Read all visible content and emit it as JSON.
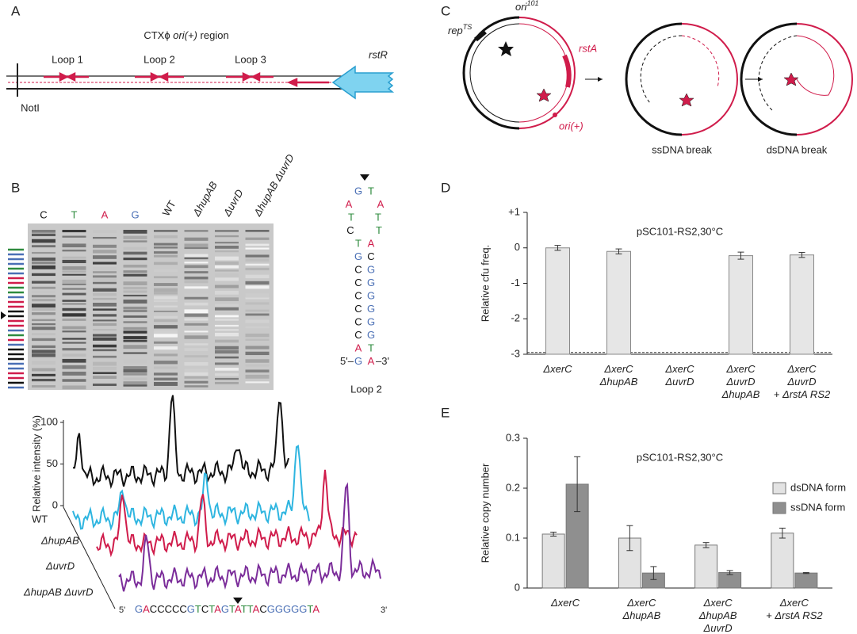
{
  "panel_a": {
    "label": "A",
    "title_parts": [
      "CTXϕ ",
      "ori(+)",
      " region"
    ],
    "loops": [
      "Loop 1",
      "Loop 2",
      "Loop 3"
    ],
    "gene": "rstR",
    "site": "NotI"
  },
  "panel_b": {
    "label": "B",
    "lanes": [
      "C",
      "T",
      "A",
      "G",
      "WT",
      "ΔhupAB",
      "ΔuvrD",
      "ΔhupAB ΔuvrD"
    ],
    "hairpin_rows": [
      [
        "G",
        "T"
      ],
      [
        "A",
        "A"
      ],
      [
        "T",
        "T"
      ],
      [
        "C",
        "T"
      ],
      [
        "T",
        "A"
      ],
      [
        "G",
        "C"
      ],
      [
        "C",
        "G"
      ],
      [
        "C",
        "G"
      ],
      [
        "C",
        "G"
      ],
      [
        "C",
        "G"
      ],
      [
        "C",
        "G"
      ],
      [
        "C",
        "G"
      ],
      [
        "A",
        "T"
      ],
      [
        "G",
        "A"
      ]
    ],
    "hairpin_ends": [
      "5'–",
      "–3'"
    ],
    "hairpin_label": "Loop 2",
    "trace_axis_label": "Relative intensity (%)",
    "trace_ticks": [
      100,
      50,
      0
    ],
    "traces": [
      "WT",
      "ΔhupAB",
      "ΔuvrD",
      "ΔhupAB ΔuvrD"
    ],
    "sequence": "GACCCCCGTCTAGTATTACGGGGGTA",
    "seq_ends": [
      "5'",
      "3'"
    ]
  },
  "panel_c": {
    "label": "C",
    "ori101": [
      "ori",
      "101"
    ],
    "rep": [
      "rep",
      "TS"
    ],
    "gene": "rstA",
    "origin": "ori(+)",
    "steps": [
      "ssDNA break",
      "dsDNA break"
    ]
  },
  "panel_labels": [
    "D",
    "E"
  ],
  "chart_data": [
    {
      "type": "bar",
      "title": "pSC101-RS2,30°C",
      "y_label": "Relative cfu freq.",
      "categories": [
        [
          "ΔxerC"
        ],
        [
          "ΔxerC",
          "ΔhupAB"
        ],
        [
          "ΔxerC",
          "ΔuvrD"
        ],
        [
          "ΔxerC",
          "ΔuvrD",
          "ΔhupAB"
        ],
        [
          "ΔxerC",
          "ΔuvrD",
          "+ ΔrstA RS2"
        ]
      ],
      "values": [
        0,
        -0.1,
        -3,
        -0.22,
        -0.2
      ],
      "errors": [
        0.07,
        0.07,
        0,
        0.1,
        0.07
      ],
      "color": "#e6e6e6",
      "dashed_line": -2.95,
      "ylim": [
        -3,
        1
      ],
      "yticks": [
        {
          "value": 1,
          "label": "+1"
        },
        0,
        -1,
        -2,
        -3
      ]
    },
    {
      "type": "grouped_bar",
      "title": "pSC101-RS2,30°C",
      "y_label": "Relative copy number",
      "categories": [
        [
          "ΔxerC"
        ],
        [
          "ΔxerC",
          "ΔhupAB"
        ],
        [
          "ΔxerC",
          "ΔhupAB",
          "ΔuvrD"
        ],
        [
          "ΔxerC",
          "+ ΔrstA RS2"
        ]
      ],
      "series": [
        {
          "name": "dsDNA form",
          "color": "#e3e3e3",
          "values": [
            0.108,
            0.1,
            0.086,
            0.11
          ],
          "errors": [
            0.004,
            0.025,
            0.005,
            0.01
          ]
        },
        {
          "name": "ssDNA form",
          "color": "#8f8f8f",
          "values": [
            0.208,
            0.03,
            0.031,
            0.03
          ],
          "errors": [
            0.055,
            0.013,
            0.004,
            0.001
          ]
        }
      ],
      "legend": "upper right",
      "ylim": [
        0,
        0.3
      ],
      "yticks": [
        0,
        0.1,
        0.2,
        0.3
      ]
    }
  ]
}
